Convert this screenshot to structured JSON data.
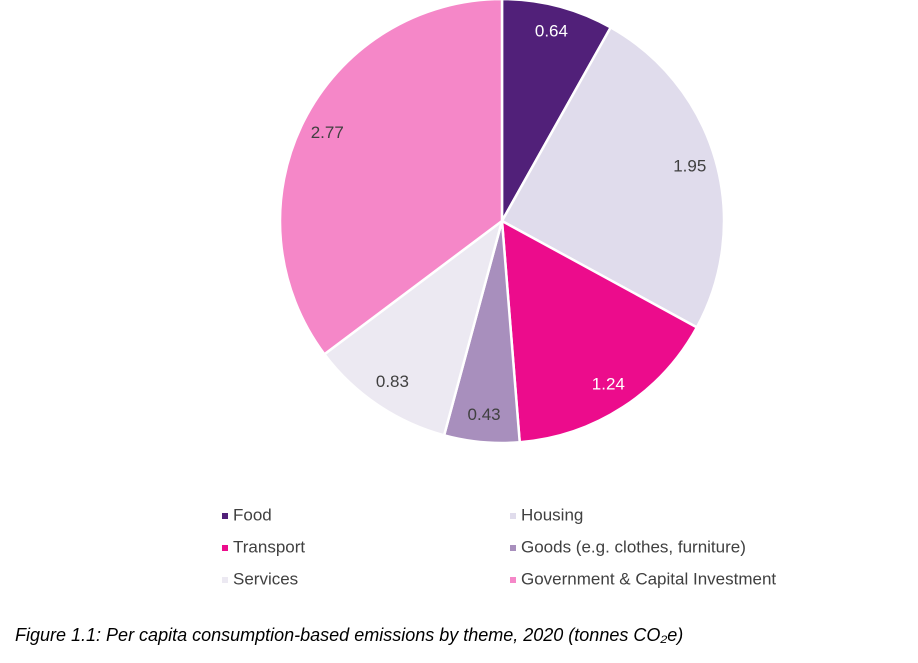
{
  "chart_data": {
    "type": "pie",
    "caption": "Figure 1.1: Per capita consumption-based emissions by theme, 2020 (tonnes CO₂e)",
    "categories": [
      "Food",
      "Housing",
      "Transport",
      "Goods (e.g. clothes, furniture)",
      "Services",
      "Government & Capital Investment"
    ],
    "values": [
      0.64,
      1.95,
      1.24,
      0.43,
      0.83,
      2.77
    ],
    "colors": [
      "#512079",
      "#e0dcec",
      "#ec0c8c",
      "#a88fbd",
      "#ece9f2",
      "#f587c8"
    ]
  }
}
